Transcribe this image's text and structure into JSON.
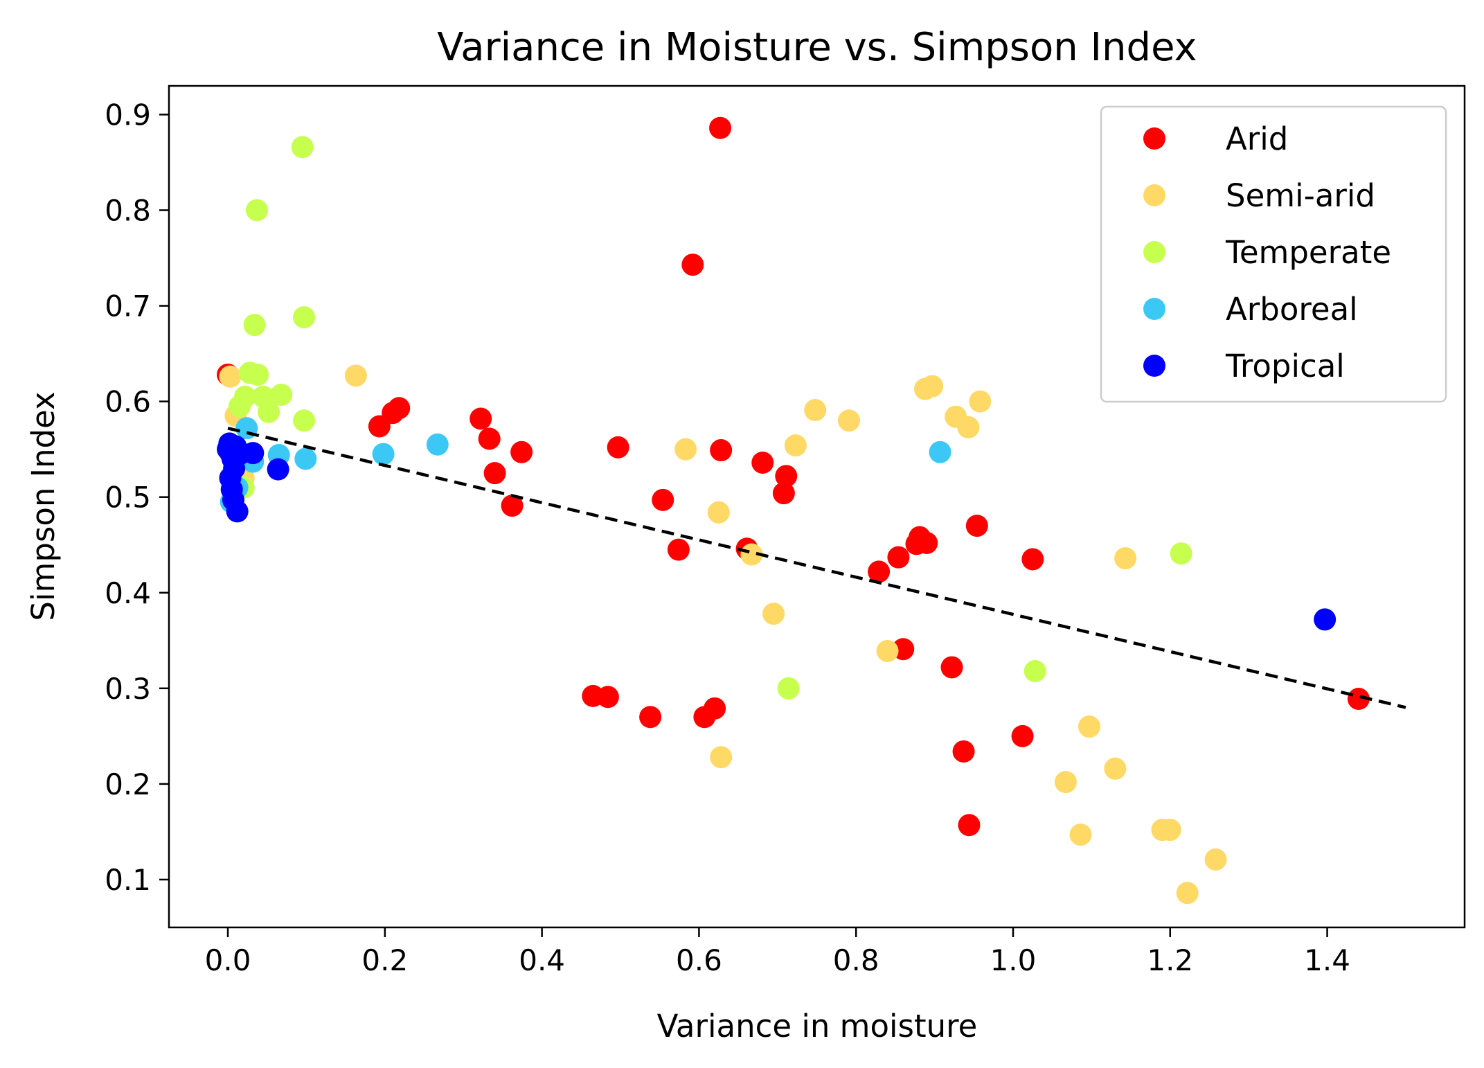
{
  "chart_data": {
    "type": "scatter",
    "title": "Variance in Moisture vs. Simpson Index",
    "xlabel": "Variance in moisture",
    "ylabel": "Simpson Index",
    "xlim": [
      -0.075,
      1.575
    ],
    "ylim": [
      0.05,
      0.93
    ],
    "x_ticks": [
      0.0,
      0.2,
      0.4,
      0.6,
      0.8,
      1.0,
      1.2,
      1.4
    ],
    "x_tick_labels": [
      "0.0",
      "0.2",
      "0.4",
      "0.6",
      "0.8",
      "1.0",
      "1.2",
      "1.4"
    ],
    "y_ticks": [
      0.1,
      0.2,
      0.3,
      0.4,
      0.5,
      0.6,
      0.7,
      0.8,
      0.9
    ],
    "y_tick_labels": [
      "0.1",
      "0.2",
      "0.3",
      "0.4",
      "0.5",
      "0.6",
      "0.7",
      "0.8",
      "0.9"
    ],
    "grid": false,
    "legend_position": "top-right",
    "series": [
      {
        "name": "Arid",
        "color": "#ff0000",
        "points": [
          [
            0.627,
            0.886
          ],
          [
            0.592,
            0.743
          ],
          [
            0.0,
            0.628
          ],
          [
            0.193,
            0.574
          ],
          [
            0.21,
            0.588
          ],
          [
            0.218,
            0.593
          ],
          [
            0.322,
            0.582
          ],
          [
            0.333,
            0.561
          ],
          [
            0.34,
            0.525
          ],
          [
            0.362,
            0.491
          ],
          [
            0.374,
            0.547
          ],
          [
            0.497,
            0.552
          ],
          [
            0.554,
            0.497
          ],
          [
            0.574,
            0.445
          ],
          [
            0.628,
            0.549
          ],
          [
            0.681,
            0.536
          ],
          [
            0.711,
            0.522
          ],
          [
            0.708,
            0.504
          ],
          [
            0.661,
            0.446
          ],
          [
            0.465,
            0.292
          ],
          [
            0.484,
            0.291
          ],
          [
            0.538,
            0.27
          ],
          [
            0.607,
            0.27
          ],
          [
            0.62,
            0.279
          ],
          [
            0.829,
            0.422
          ],
          [
            0.854,
            0.437
          ],
          [
            0.881,
            0.458
          ],
          [
            0.877,
            0.451
          ],
          [
            0.89,
            0.452
          ],
          [
            0.954,
            0.47
          ],
          [
            1.025,
            0.435
          ],
          [
            0.86,
            0.341
          ],
          [
            0.922,
            0.322
          ],
          [
            0.937,
            0.234
          ],
          [
            0.944,
            0.157
          ],
          [
            1.012,
            0.25
          ],
          [
            1.44,
            0.289
          ]
        ]
      },
      {
        "name": "Semi-arid",
        "color": "#ffd966",
        "points": [
          [
            0.003,
            0.626
          ],
          [
            0.163,
            0.627
          ],
          [
            0.583,
            0.55
          ],
          [
            0.625,
            0.484
          ],
          [
            0.667,
            0.44
          ],
          [
            0.695,
            0.378
          ],
          [
            0.628,
            0.228
          ],
          [
            0.723,
            0.554
          ],
          [
            0.748,
            0.591
          ],
          [
            0.791,
            0.58
          ],
          [
            0.888,
            0.613
          ],
          [
            0.897,
            0.616
          ],
          [
            0.927,
            0.584
          ],
          [
            0.943,
            0.573
          ],
          [
            0.958,
            0.6
          ],
          [
            0.84,
            0.339
          ],
          [
            1.067,
            0.202
          ],
          [
            1.086,
            0.147
          ],
          [
            1.097,
            0.26
          ],
          [
            1.13,
            0.216
          ],
          [
            1.143,
            0.436
          ],
          [
            1.19,
            0.152
          ],
          [
            1.2,
            0.152
          ],
          [
            1.222,
            0.086
          ],
          [
            1.258,
            0.121
          ],
          [
            0.02,
            0.52
          ],
          [
            0.01,
            0.585
          ]
        ]
      },
      {
        "name": "Temperate",
        "color": "#c6ff4d",
        "points": [
          [
            0.095,
            0.866
          ],
          [
            0.037,
            0.8
          ],
          [
            0.034,
            0.68
          ],
          [
            0.097,
            0.688
          ],
          [
            0.028,
            0.63
          ],
          [
            0.038,
            0.628
          ],
          [
            0.022,
            0.605
          ],
          [
            0.045,
            0.605
          ],
          [
            0.068,
            0.607
          ],
          [
            0.052,
            0.589
          ],
          [
            0.097,
            0.58
          ],
          [
            0.714,
            0.3
          ],
          [
            1.028,
            0.318
          ],
          [
            1.214,
            0.441
          ],
          [
            0.02,
            0.51
          ],
          [
            0.015,
            0.595
          ]
        ]
      },
      {
        "name": "Arboreal",
        "color": "#3cc8f5",
        "points": [
          [
            0.024,
            0.572
          ],
          [
            0.028,
            0.545
          ],
          [
            0.032,
            0.537
          ],
          [
            0.065,
            0.544
          ],
          [
            0.099,
            0.54
          ],
          [
            0.198,
            0.545
          ],
          [
            0.267,
            0.555
          ],
          [
            0.907,
            0.547
          ],
          [
            0.004,
            0.495
          ],
          [
            0.012,
            0.51
          ]
        ]
      },
      {
        "name": "Tropical",
        "color": "#0000ff",
        "points": [
          [
            0.0,
            0.55
          ],
          [
            0.002,
            0.556
          ],
          [
            0.004,
            0.545
          ],
          [
            0.006,
            0.54
          ],
          [
            0.01,
            0.553
          ],
          [
            0.008,
            0.53
          ],
          [
            0.003,
            0.52
          ],
          [
            0.005,
            0.508
          ],
          [
            0.007,
            0.497
          ],
          [
            0.012,
            0.485
          ],
          [
            0.015,
            0.545
          ],
          [
            0.032,
            0.546
          ],
          [
            0.064,
            0.529
          ],
          [
            1.397,
            0.372
          ]
        ]
      }
    ],
    "trend_line": {
      "style": "dashed",
      "color": "#000000",
      "points": [
        [
          0.0,
          0.572
        ],
        [
          1.5,
          0.28
        ]
      ]
    }
  }
}
